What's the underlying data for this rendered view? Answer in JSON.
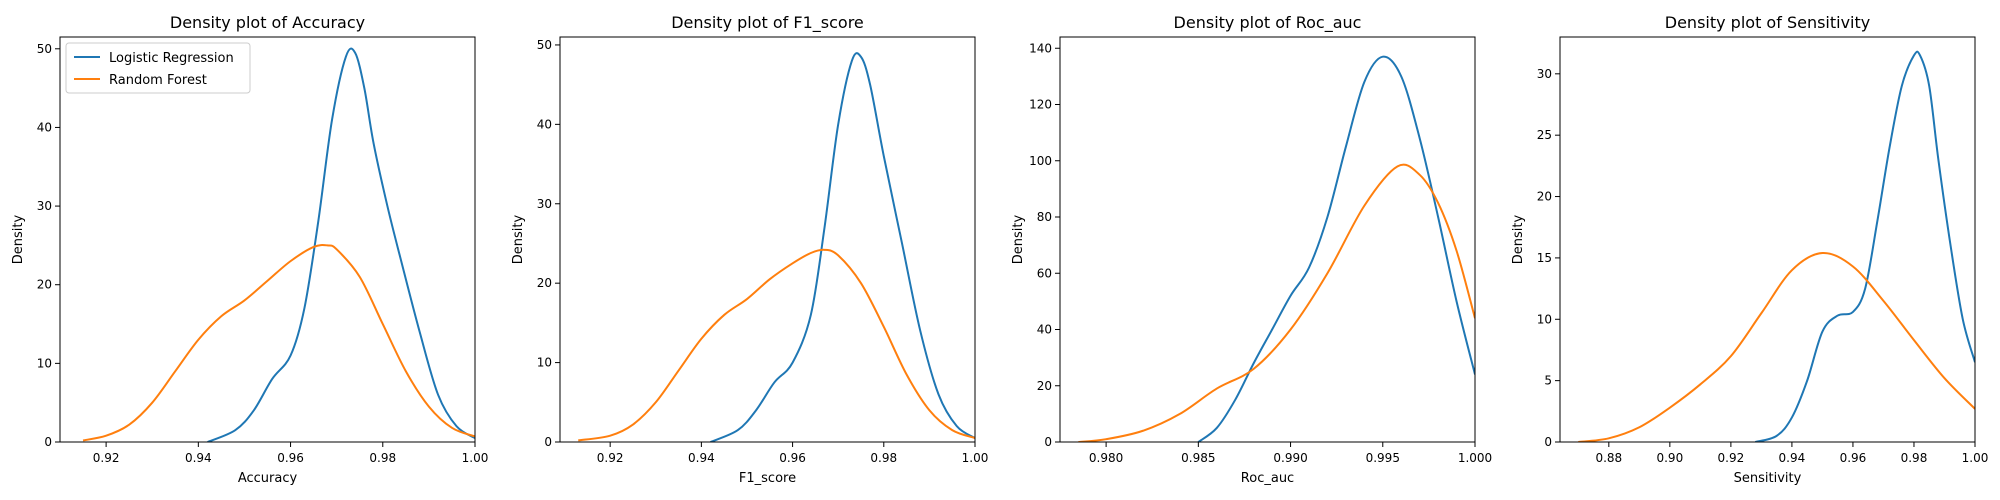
{
  "colors": {
    "logistic": "#1f77b4",
    "forest": "#ff7f0e"
  },
  "legend": {
    "placement": "top-left",
    "entries": [
      "Logistic Regression",
      "Random Forest"
    ]
  },
  "chart_data": [
    {
      "type": "line",
      "title": "Density plot of Accuracy",
      "xlabel": "Accuracy",
      "ylabel": "Density",
      "xlim": [
        0.91,
        1.0
      ],
      "ylim": [
        0,
        51.5
      ],
      "xticks": [
        0.92,
        0.94,
        0.96,
        0.98,
        1.0
      ],
      "xtick_labels": [
        "0.92",
        "0.94",
        "0.96",
        "0.98",
        "1.00"
      ],
      "yticks": [
        0,
        10,
        20,
        30,
        40,
        50
      ],
      "ytick_labels": [
        "0",
        "10",
        "20",
        "30",
        "40",
        "50"
      ],
      "show_legend": true,
      "series": [
        {
          "name": "Logistic Regression",
          "color": "#1f77b4",
          "x": [
            0.942,
            0.948,
            0.952,
            0.956,
            0.96,
            0.963,
            0.966,
            0.969,
            0.972,
            0.974,
            0.976,
            0.978,
            0.981,
            0.984,
            0.988,
            0.992,
            0.996,
            1.0
          ],
          "y": [
            0,
            1.5,
            4,
            8,
            11,
            17,
            28,
            41,
            49,
            49.5,
            45,
            38,
            30,
            23,
            14,
            6,
            2,
            0.5
          ]
        },
        {
          "name": "Random Forest",
          "color": "#ff7f0e",
          "x": [
            0.915,
            0.92,
            0.925,
            0.93,
            0.935,
            0.94,
            0.945,
            0.95,
            0.955,
            0.96,
            0.965,
            0.968,
            0.97,
            0.975,
            0.98,
            0.985,
            0.99,
            0.995,
            1.0
          ],
          "y": [
            0.2,
            0.8,
            2.2,
            5,
            9,
            13,
            16,
            18,
            20.5,
            23,
            24.8,
            25,
            24.5,
            21,
            15,
            9,
            4.5,
            1.8,
            0.7
          ]
        }
      ]
    },
    {
      "type": "line",
      "title": "Density plot of F1_score",
      "xlabel": "F1_score",
      "ylabel": "Density",
      "xlim": [
        0.909,
        1.0
      ],
      "ylim": [
        0,
        51
      ],
      "xticks": [
        0.92,
        0.94,
        0.96,
        0.98,
        1.0
      ],
      "xtick_labels": [
        "0.92",
        "0.94",
        "0.96",
        "0.98",
        "1.00"
      ],
      "yticks": [
        0,
        10,
        20,
        30,
        40,
        50
      ],
      "ytick_labels": [
        "0",
        "10",
        "20",
        "30",
        "40",
        "50"
      ],
      "show_legend": false,
      "series": [
        {
          "name": "Logistic Regression",
          "color": "#1f77b4",
          "x": [
            0.942,
            0.948,
            0.952,
            0.956,
            0.96,
            0.964,
            0.967,
            0.97,
            0.973,
            0.975,
            0.977,
            0.98,
            0.984,
            0.988,
            0.992,
            0.996,
            1.0
          ],
          "y": [
            0,
            1.5,
            4,
            7.5,
            10,
            16,
            27,
            40,
            48,
            48.5,
            45,
            36,
            25,
            14,
            6,
            2,
            0.5
          ]
        },
        {
          "name": "Random Forest",
          "color": "#ff7f0e",
          "x": [
            0.913,
            0.92,
            0.925,
            0.93,
            0.935,
            0.94,
            0.945,
            0.95,
            0.955,
            0.96,
            0.964,
            0.967,
            0.97,
            0.975,
            0.98,
            0.985,
            0.99,
            0.995,
            1.0
          ],
          "y": [
            0.2,
            0.8,
            2.2,
            5,
            9,
            13,
            16,
            18,
            20.5,
            22.5,
            23.8,
            24.2,
            23.5,
            20,
            14.5,
            8.5,
            4,
            1.5,
            0.5
          ]
        }
      ]
    },
    {
      "type": "line",
      "title": "Density plot of Roc_auc",
      "xlabel": "Roc_auc",
      "ylabel": "Density",
      "xlim": [
        0.9775,
        1.0
      ],
      "ylim": [
        0,
        144
      ],
      "xticks": [
        0.98,
        0.985,
        0.99,
        0.995,
        1.0
      ],
      "xtick_labels": [
        "0.980",
        "0.985",
        "0.990",
        "0.995",
        "1.000"
      ],
      "yticks": [
        0,
        20,
        40,
        60,
        80,
        100,
        120,
        140
      ],
      "ytick_labels": [
        "0",
        "20",
        "40",
        "60",
        "80",
        "100",
        "120",
        "140"
      ],
      "show_legend": false,
      "series": [
        {
          "name": "Logistic Regression",
          "color": "#1f77b4",
          "x": [
            0.985,
            0.986,
            0.987,
            0.988,
            0.989,
            0.99,
            0.991,
            0.992,
            0.993,
            0.994,
            0.995,
            0.996,
            0.997,
            0.998,
            0.999,
            1.0
          ],
          "y": [
            0,
            5,
            15,
            28,
            40,
            52,
            62,
            80,
            105,
            128,
            137,
            130,
            108,
            80,
            50,
            24
          ]
        },
        {
          "name": "Random Forest",
          "color": "#ff7f0e",
          "x": [
            0.9785,
            0.98,
            0.982,
            0.984,
            0.986,
            0.988,
            0.99,
            0.992,
            0.994,
            0.9958,
            0.997,
            0.998,
            0.999,
            1.0
          ],
          "y": [
            0,
            1,
            4,
            10,
            19,
            26,
            40,
            60,
            84,
            98,
            95,
            85,
            68,
            44
          ]
        }
      ]
    },
    {
      "type": "line",
      "title": "Density plot of Sensitivity",
      "xlabel": "Sensitivity",
      "ylabel": "Density",
      "xlim": [
        0.864,
        1.0
      ],
      "ylim": [
        0,
        33
      ],
      "xticks": [
        0.88,
        0.9,
        0.92,
        0.94,
        0.96,
        0.98,
        1.0
      ],
      "xtick_labels": [
        "0.88",
        "0.90",
        "0.92",
        "0.94",
        "0.96",
        "0.98",
        "1.00"
      ],
      "yticks": [
        0,
        5,
        10,
        15,
        20,
        25,
        30
      ],
      "ytick_labels": [
        "0",
        "5",
        "10",
        "15",
        "20",
        "25",
        "30"
      ],
      "show_legend": false,
      "series": [
        {
          "name": "Logistic Regression",
          "color": "#1f77b4",
          "x": [
            0.928,
            0.935,
            0.94,
            0.945,
            0.95,
            0.955,
            0.96,
            0.964,
            0.968,
            0.972,
            0.976,
            0.98,
            0.982,
            0.985,
            0.988,
            0.992,
            0.996,
            1.0
          ],
          "y": [
            0,
            0.5,
            2,
            5,
            9,
            10.3,
            10.6,
            12.5,
            18,
            24,
            29,
            31.5,
            31.5,
            29,
            23,
            16,
            10,
            6.5
          ]
        },
        {
          "name": "Random Forest",
          "color": "#ff7f0e",
          "x": [
            0.87,
            0.88,
            0.89,
            0.9,
            0.91,
            0.92,
            0.93,
            0.94,
            0.95,
            0.96,
            0.97,
            0.98,
            0.99,
            1.0
          ],
          "y": [
            0,
            0.3,
            1.2,
            2.8,
            4.7,
            7,
            10.5,
            14,
            15.4,
            14.3,
            11.5,
            8.3,
            5.2,
            2.7
          ]
        }
      ]
    }
  ]
}
